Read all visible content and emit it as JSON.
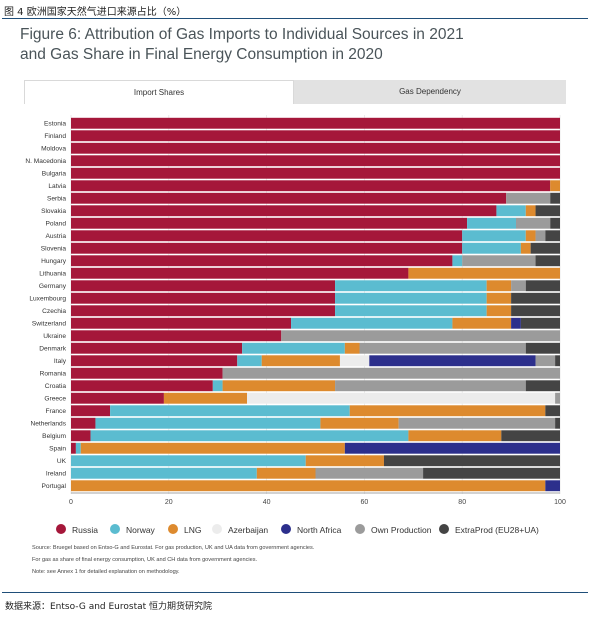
{
  "page": {
    "caption": "图 4 欧洲国家天然气进口来源占比（%）",
    "footer": "数据来源：Entso-G and Eurostat 恒力期货研究院"
  },
  "figure": {
    "title_line1": "Figure 6: Attribution of Gas Imports to Individual Sources in 2021",
    "title_line2": "and Gas Share in Final Energy Consumption in 2020",
    "tabs": [
      {
        "label": "Import Shares",
        "active": true
      },
      {
        "label": "Gas Dependency",
        "active": false
      }
    ],
    "notes": [
      "Source: Bruegel based on Entso-G and Eurostat. For gas production, UK and UA data from government agencies.",
      "For gas as share of final energy consumption, UK and CH data from government agencies.",
      "Note: see Annex 1 for detailed explanation on methodology."
    ]
  },
  "colors": {
    "Russia": "#a5173a",
    "Norway": "#5bbcd0",
    "LNG": "#dd8a2e",
    "Azerbaijan": "#ececec",
    "North Africa": "#2c2f8c",
    "Own Production": "#9b9b9b",
    "ExtraProd (EU28+UA)": "#444444"
  },
  "chart_data": {
    "type": "bar",
    "orientation": "horizontal",
    "stacked": true,
    "xlim": [
      0,
      100
    ],
    "xticks": [
      0,
      20,
      40,
      60,
      80,
      100
    ],
    "legend_position": "bottom",
    "series_order": [
      "Russia",
      "Norway",
      "LNG",
      "Azerbaijan",
      "North Africa",
      "Own Production",
      "ExtraProd (EU28+UA)"
    ],
    "categories": [
      "Estonia",
      "Finland",
      "Moldova",
      "N. Macedonia",
      "Bulgaria",
      "Latvia",
      "Serbia",
      "Slovakia",
      "Poland",
      "Austria",
      "Slovenia",
      "Hungary",
      "Lithuania",
      "Germany",
      "Luxembourg",
      "Czechia",
      "Switzerland",
      "Ukraine",
      "Denmark",
      "Italy",
      "Romania",
      "Croatia",
      "Greece",
      "France",
      "Netherlands",
      "Belgium",
      "Spain",
      "UK",
      "Ireland",
      "Portugal"
    ],
    "series": [
      {
        "name": "Russia",
        "values": [
          100,
          100,
          100,
          100,
          100,
          98,
          89,
          87,
          81,
          80,
          80,
          78,
          69,
          54,
          54,
          54,
          45,
          43,
          35,
          34,
          31,
          29,
          19,
          8,
          5,
          4,
          1,
          0,
          0,
          0
        ]
      },
      {
        "name": "Norway",
        "values": [
          0,
          0,
          0,
          0,
          0,
          0,
          0,
          6,
          10,
          13,
          12,
          2,
          0,
          31,
          31,
          31,
          33,
          0,
          21,
          5,
          0,
          2,
          0,
          49,
          46,
          65,
          1,
          48,
          38,
          0
        ]
      },
      {
        "name": "LNG",
        "values": [
          0,
          0,
          0,
          0,
          0,
          2,
          0,
          2,
          0,
          2,
          2,
          0,
          31,
          5,
          5,
          5,
          12,
          0,
          3,
          16,
          0,
          23,
          17,
          40,
          16,
          19,
          54,
          16,
          12,
          97
        ]
      },
      {
        "name": "Azerbaijan",
        "values": [
          0,
          0,
          0,
          0,
          0,
          0,
          0,
          0,
          0,
          0,
          0,
          0,
          0,
          0,
          0,
          0,
          0,
          0,
          0,
          6,
          0,
          0,
          63,
          0,
          0,
          0,
          0,
          0,
          0,
          0
        ]
      },
      {
        "name": "North Africa",
        "values": [
          0,
          0,
          0,
          0,
          0,
          0,
          0,
          0,
          0,
          0,
          0,
          0,
          0,
          0,
          0,
          0,
          2,
          0,
          0,
          34,
          0,
          0,
          0,
          0,
          0,
          0,
          44,
          0,
          0,
          3
        ]
      },
      {
        "name": "Own Production",
        "values": [
          0,
          0,
          0,
          0,
          0,
          0,
          9,
          0,
          7,
          2,
          0,
          15,
          0,
          3,
          0,
          0,
          0,
          57,
          34,
          4,
          69,
          39,
          1,
          0,
          32,
          0,
          0,
          0,
          22,
          0
        ]
      },
      {
        "name": "ExtraProd (EU28+UA)",
        "values": [
          0,
          0,
          0,
          0,
          0,
          0,
          2,
          5,
          2,
          3,
          6,
          5,
          0,
          7,
          10,
          10,
          8,
          0,
          7,
          1,
          0,
          7,
          0,
          3,
          1,
          12,
          0,
          36,
          28,
          0
        ]
      }
    ]
  }
}
